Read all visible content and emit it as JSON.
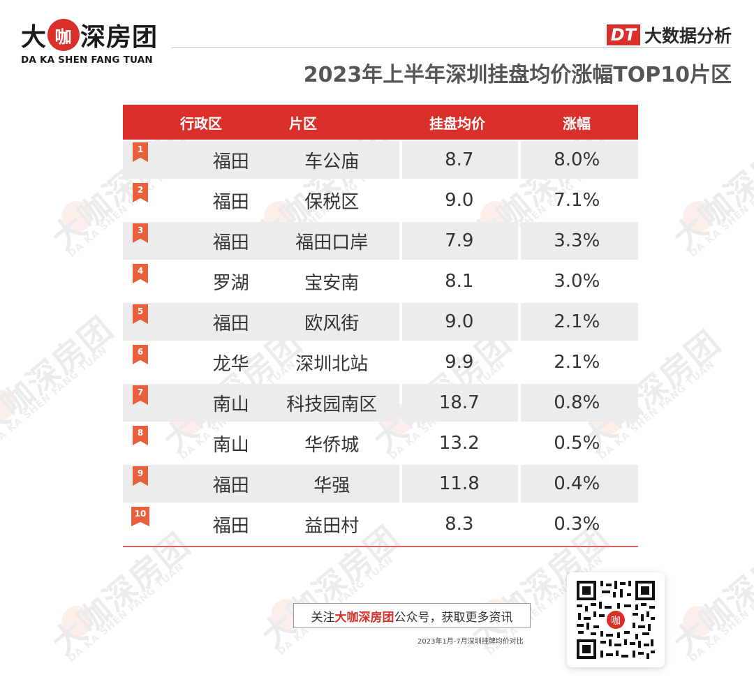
{
  "header": {
    "logo_main_1": "大",
    "logo_main_circle": "咖",
    "logo_main_2": "深房团",
    "logo_sub": "DA KA SHEN FANG TUAN",
    "brand_badge": "DT",
    "brand_label": "大数据分析",
    "title": "2023年上半年深圳挂盘均价涨幅TOP10片区"
  },
  "table": {
    "columns": [
      "行政区",
      "片区",
      "挂盘均价",
      "涨幅"
    ],
    "rows": [
      {
        "rank": "1",
        "district": "福田",
        "area": "车公庙",
        "price": "8.7",
        "growth": "8.0%"
      },
      {
        "rank": "2",
        "district": "福田",
        "area": "保税区",
        "price": "9.0",
        "growth": "7.1%"
      },
      {
        "rank": "3",
        "district": "福田",
        "area": "福田口岸",
        "price": "7.9",
        "growth": "3.3%"
      },
      {
        "rank": "4",
        "district": "罗湖",
        "area": "宝安南",
        "price": "8.1",
        "growth": "3.0%"
      },
      {
        "rank": "5",
        "district": "福田",
        "area": "欧风街",
        "price": "9.0",
        "growth": "2.1%"
      },
      {
        "rank": "6",
        "district": "龙华",
        "area": "深圳北站",
        "price": "9.9",
        "growth": "2.1%"
      },
      {
        "rank": "7",
        "district": "南山",
        "area": "科技园南区",
        "price": "18.7",
        "growth": "0.8%"
      },
      {
        "rank": "8",
        "district": "南山",
        "area": "华侨城",
        "price": "13.2",
        "growth": "0.5%"
      },
      {
        "rank": "9",
        "district": "福田",
        "area": "华强",
        "price": "11.8",
        "growth": "0.4%"
      },
      {
        "rank": "10",
        "district": "福田",
        "area": "益田村",
        "price": "8.3",
        "growth": "0.3%"
      }
    ]
  },
  "footer": {
    "follow_prefix": "关注",
    "follow_brand": "大咖深房团",
    "follow_suffix": "公众号，获取更多资讯",
    "note": "2023年1月-7月深圳挂牌均价对比",
    "qr_center": "咖"
  },
  "watermark": {
    "text": "大咖深房团",
    "sub": "DA KA SHEN FANG TUAN"
  },
  "colors": {
    "accent": "#d9302c",
    "rank_badge": "#e8603c",
    "row_alt": "#ececec"
  }
}
